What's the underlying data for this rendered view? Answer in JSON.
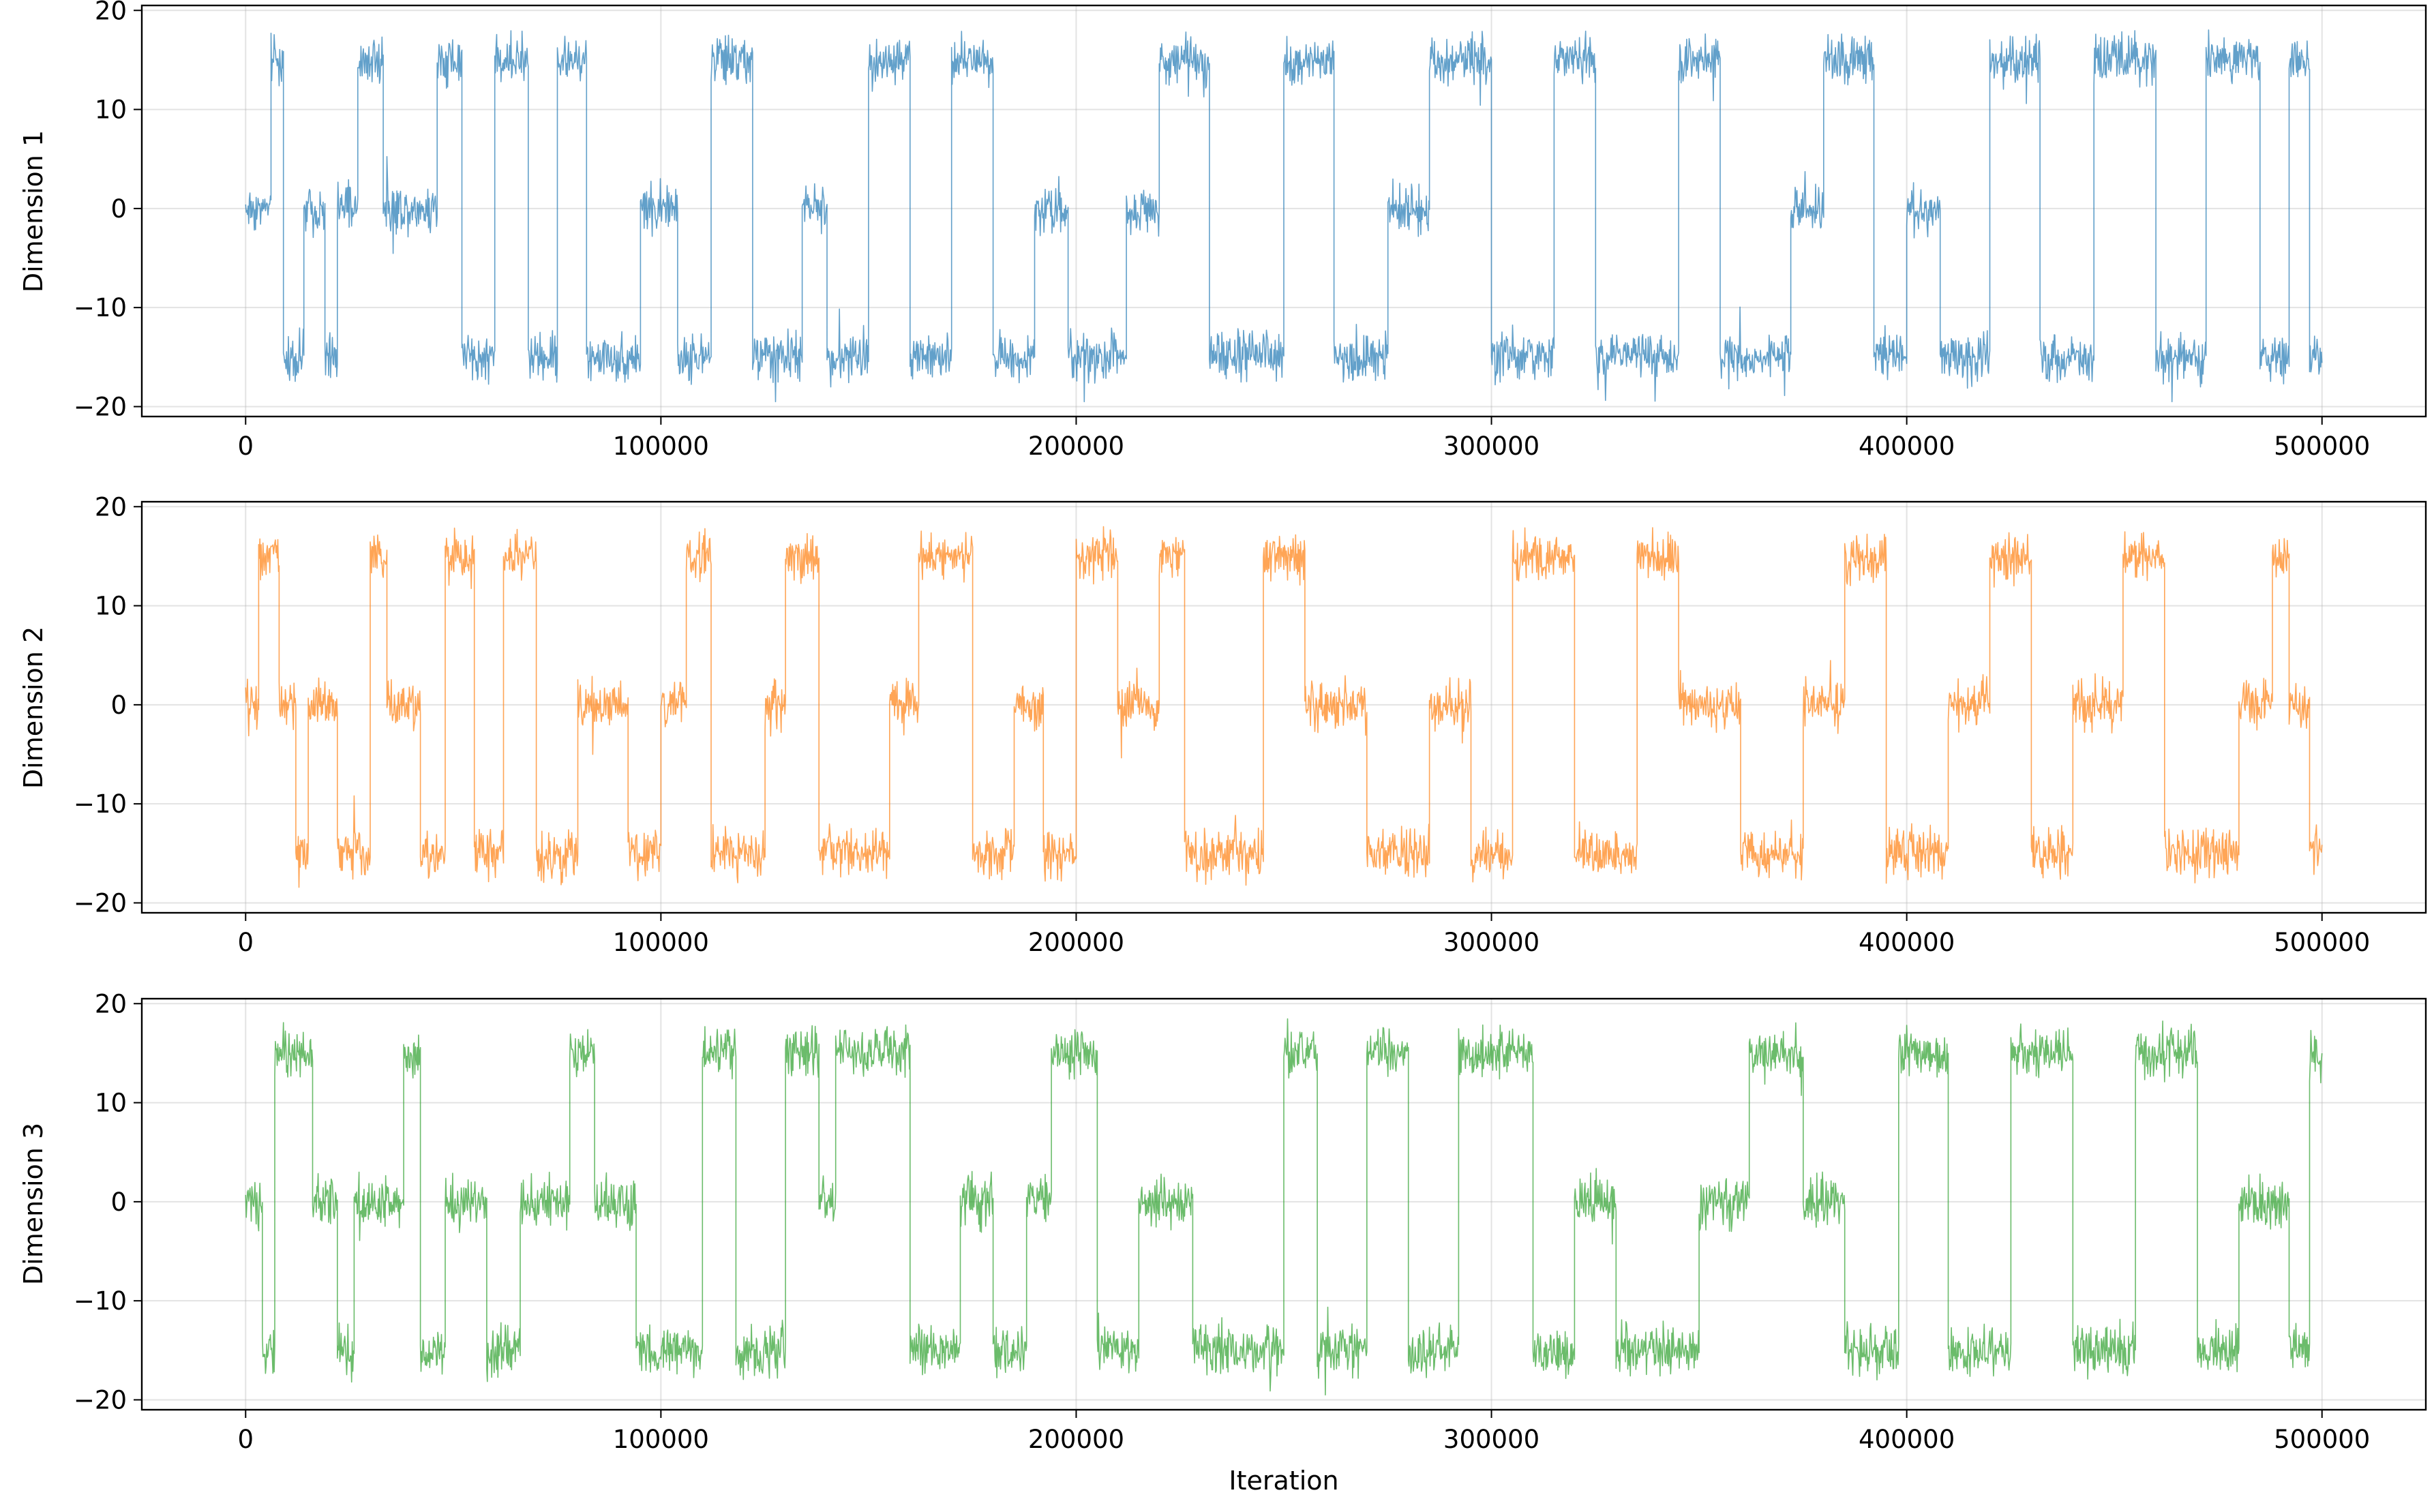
{
  "chart_data": [
    {
      "type": "line",
      "title": "",
      "xlabel": "",
      "ylabel": "Dimension 1",
      "color": "#1f77b4",
      "xlim": [
        -25000,
        525000
      ],
      "ylim": [
        -21,
        20.5
      ],
      "xticks": [
        0,
        100000,
        200000,
        300000,
        400000,
        500000
      ],
      "xtick_labels": [
        "0",
        "100000",
        "200000",
        "300000",
        "400000",
        "500000"
      ],
      "yticks": [
        -20,
        -10,
        0,
        10,
        20
      ],
      "ytick_labels": [
        "−20",
        "−10",
        "0",
        "10",
        "20"
      ],
      "grid": true,
      "series": [
        {
          "name": "Dimension 1",
          "description": "MCMC trace over 500000 iterations switching between modes near -15, 0 and 15",
          "modes": [
            -15,
            0,
            15
          ],
          "segments": [
            [
              0,
              0
            ],
            [
              6000,
              15
            ],
            [
              9000,
              -15
            ],
            [
              14000,
              0
            ],
            [
              19000,
              -15
            ],
            [
              22000,
              0
            ],
            [
              27000,
              15
            ],
            [
              33000,
              0
            ],
            [
              46000,
              15
            ],
            [
              52000,
              -15
            ],
            [
              60000,
              15
            ],
            [
              68000,
              -15
            ],
            [
              75000,
              15
            ],
            [
              82000,
              -15
            ],
            [
              95000,
              0
            ],
            [
              104000,
              -15
            ],
            [
              112000,
              15
            ],
            [
              122000,
              -15
            ],
            [
              134000,
              0
            ],
            [
              140000,
              -15
            ],
            [
              150000,
              15
            ],
            [
              160000,
              -15
            ],
            [
              170000,
              15
            ],
            [
              180000,
              -15
            ],
            [
              190000,
              0
            ],
            [
              198000,
              -15
            ],
            [
              212000,
              0
            ],
            [
              220000,
              15
            ],
            [
              232000,
              -15
            ],
            [
              250000,
              15
            ],
            [
              262000,
              -15
            ],
            [
              275000,
              0
            ],
            [
              285000,
              15
            ],
            [
              300000,
              -15
            ],
            [
              315000,
              15
            ],
            [
              325000,
              -15
            ],
            [
              345000,
              15
            ],
            [
              355000,
              -15
            ],
            [
              372000,
              0
            ],
            [
              380000,
              15
            ],
            [
              392000,
              -15
            ],
            [
              400000,
              0
            ],
            [
              408000,
              -15
            ],
            [
              420000,
              15
            ],
            [
              432000,
              -15
            ],
            [
              445000,
              15
            ],
            [
              460000,
              -15
            ],
            [
              472000,
              15
            ],
            [
              485000,
              -15
            ],
            [
              492000,
              15
            ],
            [
              497000,
              -15
            ],
            [
              500000,
              -15
            ]
          ]
        }
      ]
    },
    {
      "type": "line",
      "title": "",
      "xlabel": "",
      "ylabel": "Dimension 2",
      "color": "#ff7f0e",
      "xlim": [
        -25000,
        525000
      ],
      "ylim": [
        -21,
        20.5
      ],
      "xticks": [
        0,
        100000,
        200000,
        300000,
        400000,
        500000
      ],
      "xtick_labels": [
        "0",
        "100000",
        "200000",
        "300000",
        "400000",
        "500000"
      ],
      "yticks": [
        -20,
        -10,
        0,
        10,
        20
      ],
      "ytick_labels": [
        "−20",
        "−10",
        "0",
        "10",
        "20"
      ],
      "grid": true,
      "series": [
        {
          "name": "Dimension 2",
          "description": "MCMC trace over 500000 iterations switching between modes near -15, 0 and 15",
          "modes": [
            -15,
            0,
            15
          ],
          "segments": [
            [
              0,
              0
            ],
            [
              3000,
              15
            ],
            [
              8000,
              0
            ],
            [
              12000,
              -15
            ],
            [
              15000,
              0
            ],
            [
              22000,
              -15
            ],
            [
              30000,
              15
            ],
            [
              34000,
              0
            ],
            [
              42000,
              -15
            ],
            [
              48000,
              15
            ],
            [
              55000,
              -15
            ],
            [
              62000,
              15
            ],
            [
              70000,
              -15
            ],
            [
              80000,
              0
            ],
            [
              92000,
              -15
            ],
            [
              100000,
              0
            ],
            [
              106000,
              15
            ],
            [
              112000,
              -15
            ],
            [
              125000,
              0
            ],
            [
              130000,
              15
            ],
            [
              138000,
              -15
            ],
            [
              155000,
              0
            ],
            [
              162000,
              15
            ],
            [
              175000,
              -15
            ],
            [
              185000,
              0
            ],
            [
              192000,
              -15
            ],
            [
              200000,
              15
            ],
            [
              210000,
              0
            ],
            [
              220000,
              15
            ],
            [
              226000,
              -15
            ],
            [
              245000,
              15
            ],
            [
              255000,
              0
            ],
            [
              270000,
              -15
            ],
            [
              285000,
              0
            ],
            [
              295000,
              -15
            ],
            [
              305000,
              15
            ],
            [
              320000,
              -15
            ],
            [
              335000,
              15
            ],
            [
              345000,
              0
            ],
            [
              360000,
              -15
            ],
            [
              375000,
              0
            ],
            [
              385000,
              15
            ],
            [
              395000,
              -15
            ],
            [
              410000,
              0
            ],
            [
              420000,
              15
            ],
            [
              430000,
              -15
            ],
            [
              440000,
              0
            ],
            [
              452000,
              15
            ],
            [
              462000,
              -15
            ],
            [
              480000,
              0
            ],
            [
              488000,
              15
            ],
            [
              492000,
              0
            ],
            [
              497000,
              -15
            ],
            [
              500000,
              -15
            ]
          ]
        }
      ]
    },
    {
      "type": "line",
      "title": "",
      "xlabel": "Iteration",
      "ylabel": "Dimension 3",
      "color": "#2ca02c",
      "xlim": [
        -25000,
        525000
      ],
      "ylim": [
        -21,
        20.5
      ],
      "xticks": [
        0,
        100000,
        200000,
        300000,
        400000,
        500000
      ],
      "xtick_labels": [
        "0",
        "100000",
        "200000",
        "300000",
        "400000",
        "500000"
      ],
      "yticks": [
        -20,
        -10,
        0,
        10,
        20
      ],
      "ytick_labels": [
        "−20",
        "−10",
        "0",
        "10",
        "20"
      ],
      "grid": true,
      "series": [
        {
          "name": "Dimension 3",
          "description": "MCMC trace over 500000 iterations switching between modes near -15, 0 and 15",
          "modes": [
            -15,
            0,
            15
          ],
          "segments": [
            [
              0,
              0
            ],
            [
              4000,
              -15
            ],
            [
              7000,
              15
            ],
            [
              16000,
              0
            ],
            [
              22000,
              -15
            ],
            [
              26000,
              0
            ],
            [
              38000,
              15
            ],
            [
              42000,
              -15
            ],
            [
              48000,
              0
            ],
            [
              58000,
              -15
            ],
            [
              66000,
              0
            ],
            [
              78000,
              15
            ],
            [
              84000,
              0
            ],
            [
              94000,
              -15
            ],
            [
              110000,
              15
            ],
            [
              118000,
              -15
            ],
            [
              130000,
              15
            ],
            [
              138000,
              0
            ],
            [
              142000,
              15
            ],
            [
              160000,
              -15
            ],
            [
              172000,
              0
            ],
            [
              180000,
              -15
            ],
            [
              188000,
              0
            ],
            [
              194000,
              15
            ],
            [
              205000,
              -15
            ],
            [
              215000,
              0
            ],
            [
              228000,
              -15
            ],
            [
              250000,
              15
            ],
            [
              258000,
              -15
            ],
            [
              270000,
              15
            ],
            [
              280000,
              -15
            ],
            [
              292000,
              15
            ],
            [
              310000,
              -15
            ],
            [
              320000,
              0
            ],
            [
              330000,
              -15
            ],
            [
              350000,
              0
            ],
            [
              362000,
              15
            ],
            [
              375000,
              0
            ],
            [
              385000,
              -15
            ],
            [
              398000,
              15
            ],
            [
              410000,
              -15
            ],
            [
              425000,
              15
            ],
            [
              440000,
              -15
            ],
            [
              455000,
              15
            ],
            [
              470000,
              -15
            ],
            [
              480000,
              0
            ],
            [
              492000,
              -15
            ],
            [
              497000,
              15
            ],
            [
              500000,
              15
            ]
          ]
        }
      ]
    }
  ]
}
